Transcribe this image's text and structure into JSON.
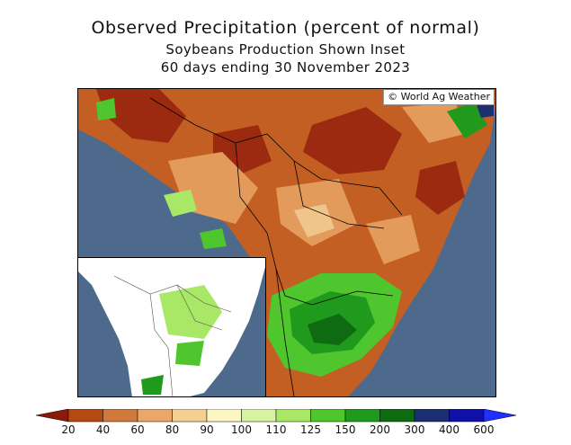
{
  "title": "Observed Precipitation (percent of normal)",
  "subtitle": "Soybeans Production Shown Inset",
  "period": "60 days ending 30 November 2023",
  "credit": "© World Ag Weather",
  "legend": {
    "labels": [
      "20",
      "40",
      "60",
      "80",
      "90",
      "100",
      "110",
      "125",
      "150",
      "200",
      "300",
      "400",
      "600"
    ],
    "colors": [
      "#8b1a0b",
      "#b34a14",
      "#cf7a3c",
      "#e9a86a",
      "#f3cf92",
      "#fbf6c4",
      "#d7f3a2",
      "#a8e866",
      "#4fc62e",
      "#1f9a1c",
      "#0e6b12",
      "#1c2f72",
      "#1010a8",
      "#1f2fff"
    ]
  },
  "colors": {
    "ocean": "#4d6a8c",
    "dry_dark": "#8b1a0b",
    "dry": "#c45f24",
    "wet": "#1f9a1c"
  }
}
